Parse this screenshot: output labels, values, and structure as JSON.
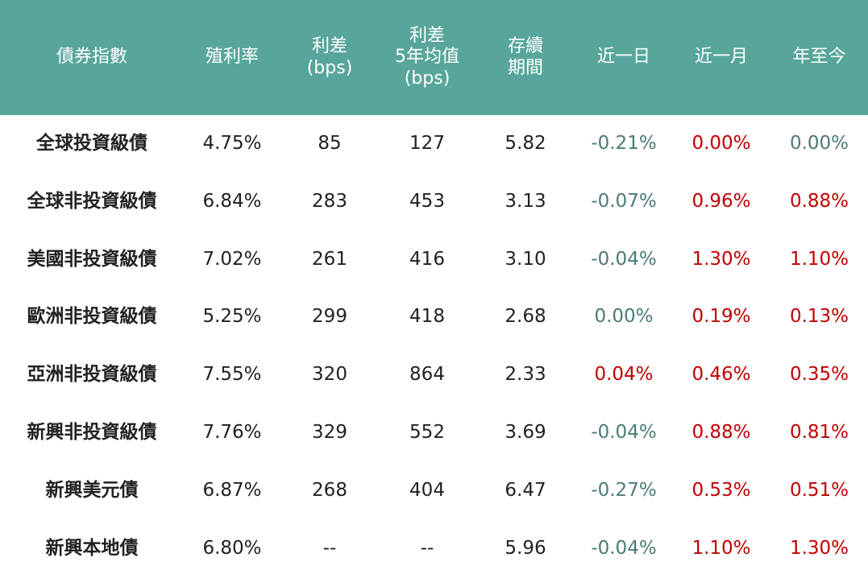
{
  "table": {
    "header": [
      [
        "債券指數"
      ],
      [
        "殖利率"
      ],
      [
        "利差",
        "(bps)"
      ],
      [
        "利差",
        "5年均值",
        "(bps)"
      ],
      [
        "存續",
        "期間"
      ],
      [
        "近一日"
      ],
      [
        "近一月"
      ],
      [
        "年至今"
      ]
    ],
    "header_color": "#58a69b",
    "rows": [
      {
        "name": "全球投資級債",
        "cells": [
          "4.75%",
          "85",
          "127",
          "5.82"
        ],
        "changes": [
          {
            "text": "-0.21%",
            "color": "#4b7a76"
          },
          {
            "text": "0.00%",
            "color": "#c00000"
          },
          {
            "text": "0.00%",
            "color": "#4b7a76"
          }
        ]
      },
      {
        "name": "全球非投資級債",
        "cells": [
          "6.84%",
          "283",
          "453",
          "3.13"
        ],
        "changes": [
          {
            "text": "-0.07%",
            "color": "#4b7a76"
          },
          {
            "text": "0.96%",
            "color": "#c00000"
          },
          {
            "text": "0.88%",
            "color": "#c00000"
          }
        ]
      },
      {
        "name": "美國非投資級債",
        "cells": [
          "7.02%",
          "261",
          "416",
          "3.10"
        ],
        "changes": [
          {
            "text": "-0.04%",
            "color": "#4b7a76"
          },
          {
            "text": "1.30%",
            "color": "#c00000"
          },
          {
            "text": "1.10%",
            "color": "#c00000"
          }
        ]
      },
      {
        "name": "歐洲非投資級債",
        "cells": [
          "5.25%",
          "299",
          "418",
          "2.68"
        ],
        "changes": [
          {
            "text": "0.00%",
            "color": "#4b7a76"
          },
          {
            "text": "0.19%",
            "color": "#c00000"
          },
          {
            "text": "0.13%",
            "color": "#c00000"
          }
        ]
      },
      {
        "name": "亞洲非投資級債",
        "cells": [
          "7.55%",
          "320",
          "864",
          "2.33"
        ],
        "changes": [
          {
            "text": "0.04%",
            "color": "#c00000"
          },
          {
            "text": "0.46%",
            "color": "#c00000"
          },
          {
            "text": "0.35%",
            "color": "#c00000"
          }
        ]
      },
      {
        "name": "新興非投資級債",
        "cells": [
          "7.76%",
          "329",
          "552",
          "3.69"
        ],
        "changes": [
          {
            "text": "-0.04%",
            "color": "#4b7a76"
          },
          {
            "text": "0.88%",
            "color": "#c00000"
          },
          {
            "text": "0.81%",
            "color": "#c00000"
          }
        ]
      },
      {
        "name": "新興美元債",
        "cells": [
          "6.87%",
          "268",
          "404",
          "6.47"
        ],
        "changes": [
          {
            "text": "-0.27%",
            "color": "#4b7a76"
          },
          {
            "text": "0.53%",
            "color": "#c00000"
          },
          {
            "text": "0.51%",
            "color": "#c00000"
          }
        ]
      },
      {
        "name": "新興本地債",
        "cells": [
          "6.80%",
          "--",
          "--",
          "5.96"
        ],
        "changes": [
          {
            "text": "-0.04%",
            "color": "#4b7a76"
          },
          {
            "text": "1.10%",
            "color": "#c00000"
          },
          {
            "text": "1.30%",
            "color": "#c00000"
          }
        ]
      }
    ]
  }
}
